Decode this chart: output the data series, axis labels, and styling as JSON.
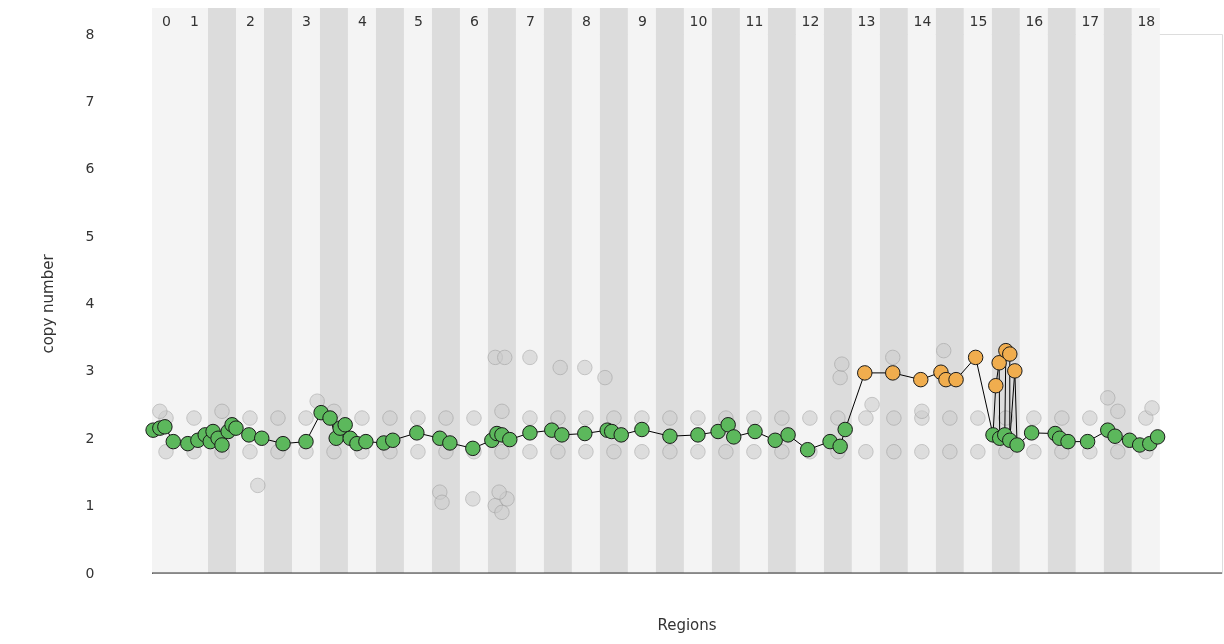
{
  "chart_data": {
    "type": "line",
    "xlabel": "Regions",
    "ylabel": "copy number",
    "xlim": [
      0.25,
      19.36
    ],
    "xticks": [
      {
        "value": 0.5,
        "label": "0"
      },
      1,
      2,
      3,
      4,
      5,
      6,
      7,
      8,
      9,
      10,
      11,
      12,
      13,
      14,
      15,
      16,
      17,
      18
    ],
    "ylim": [
      0,
      8
    ],
    "yticks": [
      0,
      1,
      2,
      3,
      4,
      5,
      6,
      7,
      8
    ],
    "grid": false,
    "bands": [
      {
        "axis": "x",
        "from": 0.25,
        "to": 0.75,
        "color": "#f4f4f4"
      },
      {
        "axis": "x",
        "from": 0.75,
        "to": 1.25,
        "color": "#f4f4f4"
      },
      {
        "axis": "x",
        "from": 1.25,
        "to": 1.75,
        "color": "#dcdcdc"
      },
      {
        "axis": "x",
        "from": 1.75,
        "to": 2.25,
        "color": "#f4f4f4"
      },
      {
        "axis": "x",
        "from": 2.25,
        "to": 2.75,
        "color": "#dcdcdc"
      },
      {
        "axis": "x",
        "from": 2.75,
        "to": 3.25,
        "color": "#f4f4f4"
      },
      {
        "axis": "x",
        "from": 3.25,
        "to": 3.75,
        "color": "#dcdcdc"
      },
      {
        "axis": "x",
        "from": 3.75,
        "to": 4.25,
        "color": "#f4f4f4"
      },
      {
        "axis": "x",
        "from": 4.25,
        "to": 4.75,
        "color": "#dcdcdc"
      },
      {
        "axis": "x",
        "from": 4.75,
        "to": 5.25,
        "color": "#f4f4f4"
      },
      {
        "axis": "x",
        "from": 5.25,
        "to": 5.75,
        "color": "#dcdcdc"
      },
      {
        "axis": "x",
        "from": 5.75,
        "to": 6.25,
        "color": "#f4f4f4"
      },
      {
        "axis": "x",
        "from": 6.25,
        "to": 6.75,
        "color": "#dcdcdc"
      },
      {
        "axis": "x",
        "from": 6.75,
        "to": 7.25,
        "color": "#f4f4f4"
      },
      {
        "axis": "x",
        "from": 7.25,
        "to": 7.75,
        "color": "#dcdcdc"
      },
      {
        "axis": "x",
        "from": 7.75,
        "to": 8.25,
        "color": "#f4f4f4"
      },
      {
        "axis": "x",
        "from": 8.25,
        "to": 8.75,
        "color": "#dcdcdc"
      },
      {
        "axis": "x",
        "from": 8.75,
        "to": 9.25,
        "color": "#f4f4f4"
      },
      {
        "axis": "x",
        "from": 9.25,
        "to": 9.75,
        "color": "#dcdcdc"
      },
      {
        "axis": "x",
        "from": 9.75,
        "to": 10.25,
        "color": "#f4f4f4"
      },
      {
        "axis": "x",
        "from": 10.25,
        "to": 10.75,
        "color": "#dcdcdc"
      },
      {
        "axis": "x",
        "from": 10.75,
        "to": 11.25,
        "color": "#f4f4f4"
      },
      {
        "axis": "x",
        "from": 11.25,
        "to": 11.75,
        "color": "#dcdcdc"
      },
      {
        "axis": "x",
        "from": 11.75,
        "to": 12.25,
        "color": "#f4f4f4"
      },
      {
        "axis": "x",
        "from": 12.25,
        "to": 12.75,
        "color": "#dcdcdc"
      },
      {
        "axis": "x",
        "from": 12.75,
        "to": 13.25,
        "color": "#f4f4f4"
      },
      {
        "axis": "x",
        "from": 13.25,
        "to": 13.75,
        "color": "#dcdcdc"
      },
      {
        "axis": "x",
        "from": 13.75,
        "to": 14.25,
        "color": "#f4f4f4"
      },
      {
        "axis": "x",
        "from": 14.25,
        "to": 14.75,
        "color": "#dcdcdc"
      },
      {
        "axis": "x",
        "from": 14.75,
        "to": 15.25,
        "color": "#f4f4f4"
      },
      {
        "axis": "x",
        "from": 15.25,
        "to": 15.75,
        "color": "#dcdcdc"
      },
      {
        "axis": "x",
        "from": 15.75,
        "to": 16.25,
        "color": "#f4f4f4"
      },
      {
        "axis": "x",
        "from": 16.25,
        "to": 16.75,
        "color": "#dcdcdc"
      },
      {
        "axis": "x",
        "from": 16.75,
        "to": 17.25,
        "color": "#f4f4f4"
      },
      {
        "axis": "x",
        "from": 17.25,
        "to": 17.75,
        "color": "#dcdcdc"
      },
      {
        "axis": "x",
        "from": 17.75,
        "to": 18.25,
        "color": "#f4f4f4"
      }
    ],
    "series": [
      {
        "type": "scatter",
        "marker": "circle",
        "color": "#cccccc",
        "x": [
          0.5,
          0.5,
          1,
          1,
          1.5,
          1.5,
          2,
          2,
          2.5,
          2.5,
          3,
          3,
          3.5,
          3.5,
          4,
          4,
          4.5,
          4.5,
          5,
          5,
          5.5,
          5.5,
          6,
          6,
          6.5,
          6.5,
          7,
          7,
          7.5,
          7.5,
          8,
          8,
          8.5,
          8.5,
          9,
          9,
          9.5,
          9.5,
          10,
          10,
          10.5,
          10.5,
          11,
          11,
          11.5,
          11.5,
          12,
          12,
          12.5,
          12.5,
          13,
          13,
          13.5,
          13.5,
          14,
          14,
          14.5,
          14.5,
          15,
          15,
          15.5,
          15.5,
          16,
          16,
          16.5,
          16.5,
          17,
          17,
          17.5,
          17.5,
          18,
          18,
          2.14,
          5.39,
          5.43,
          5.98,
          6.38,
          6.5,
          6.59,
          6.45,
          6.38,
          6.55,
          7.0,
          7.54,
          7.98,
          8.34,
          3.2,
          12.54,
          12.57,
          13.48,
          14.39,
          13.11,
          14.0,
          17.32,
          0.39,
          18.11
        ],
        "values": [
          1.8,
          2.3,
          1.8,
          2.3,
          1.8,
          2.4,
          1.8,
          2.3,
          1.8,
          2.3,
          1.8,
          2.3,
          1.8,
          2.4,
          1.8,
          2.3,
          1.8,
          2.3,
          1.8,
          2.3,
          1.8,
          2.3,
          1.8,
          2.3,
          1.8,
          2.4,
          1.8,
          2.3,
          1.8,
          2.3,
          1.8,
          2.3,
          1.8,
          2.3,
          1.8,
          2.3,
          1.8,
          2.3,
          1.8,
          2.3,
          1.8,
          2.3,
          1.8,
          2.3,
          1.8,
          2.3,
          1.8,
          2.3,
          1.8,
          2.3,
          1.8,
          2.3,
          1.8,
          2.3,
          1.8,
          2.3,
          1.8,
          2.3,
          1.8,
          2.3,
          1.8,
          2.3,
          1.8,
          2.3,
          1.8,
          2.3,
          1.8,
          2.3,
          1.8,
          2.4,
          1.8,
          2.3,
          1.3,
          1.2,
          1.05,
          1.1,
          1.0,
          0.9,
          1.1,
          1.2,
          3.2,
          3.2,
          3.2,
          3.05,
          3.05,
          2.9,
          2.55,
          2.9,
          3.1,
          3.2,
          3.3,
          2.5,
          2.4,
          2.6,
          2.4,
          2.45
        ]
      },
      {
        "marker": "circle",
        "color": "#000000",
        "x": [
          0.27,
          0.39,
          0.48,
          0.63,
          0.89,
          1.07,
          1.2,
          1.29,
          1.34,
          1.43,
          1.5,
          1.61,
          1.68,
          1.75,
          1.98,
          2.21,
          2.59,
          3.0,
          3.27,
          3.43,
          3.54,
          3.61,
          3.7,
          3.79,
          3.91,
          4.07,
          4.39,
          4.55,
          4.98,
          5.39,
          5.57,
          5.98,
          6.32,
          6.41,
          6.5,
          6.64,
          7.0,
          7.39,
          7.57,
          7.98,
          8.38,
          8.46,
          8.63,
          9.0,
          9.5,
          10.0,
          10.36,
          10.54,
          10.64,
          11.02,
          11.38,
          11.61,
          11.96,
          12.36,
          12.54,
          12.63,
          12.98,
          13.48,
          13.98,
          14.34,
          14.43,
          14.61,
          14.96,
          15.27,
          15.32,
          15.38,
          15.39,
          15.48,
          15.5,
          15.57,
          15.57,
          15.66,
          15.7,
          15.96,
          16.38,
          16.46,
          16.61,
          16.96,
          17.32,
          17.45,
          17.71,
          17.89,
          18.07,
          18.21
        ],
        "values": [
          2.12,
          2.15,
          2.17,
          1.95,
          1.92,
          1.97,
          2.05,
          1.95,
          2.1,
          2.0,
          1.9,
          2.1,
          2.2,
          2.15,
          2.05,
          2.0,
          1.92,
          1.95,
          2.38,
          2.3,
          2.0,
          2.15,
          2.2,
          2.0,
          1.92,
          1.95,
          1.93,
          1.97,
          2.08,
          2.0,
          1.93,
          1.85,
          1.97,
          2.07,
          2.05,
          1.98,
          2.08,
          2.12,
          2.05,
          2.07,
          2.12,
          2.1,
          2.05,
          2.13,
          2.03,
          2.05,
          2.1,
          2.2,
          2.02,
          2.1,
          1.97,
          2.05,
          1.83,
          1.95,
          1.88,
          2.13,
          2.97,
          2.97,
          2.87,
          2.98,
          2.87,
          2.87,
          3.2,
          2.05,
          2.78,
          3.12,
          2.0,
          2.05,
          3.3,
          3.25,
          1.97,
          3.0,
          1.9,
          2.08,
          2.07,
          2.0,
          1.95,
          1.95,
          2.12,
          2.03,
          1.97,
          1.9,
          1.92,
          2.02
        ],
        "colors": [
          "#5cb85c",
          "#5cb85c",
          "#5cb85c",
          "#5cb85c",
          "#5cb85c",
          "#5cb85c",
          "#5cb85c",
          "#5cb85c",
          "#5cb85c",
          "#5cb85c",
          "#5cb85c",
          "#5cb85c",
          "#5cb85c",
          "#5cb85c",
          "#5cb85c",
          "#5cb85c",
          "#5cb85c",
          "#5cb85c",
          "#5cb85c",
          "#5cb85c",
          "#5cb85c",
          "#5cb85c",
          "#5cb85c",
          "#5cb85c",
          "#5cb85c",
          "#5cb85c",
          "#5cb85c",
          "#5cb85c",
          "#5cb85c",
          "#5cb85c",
          "#5cb85c",
          "#5cb85c",
          "#5cb85c",
          "#5cb85c",
          "#5cb85c",
          "#5cb85c",
          "#5cb85c",
          "#5cb85c",
          "#5cb85c",
          "#5cb85c",
          "#5cb85c",
          "#5cb85c",
          "#5cb85c",
          "#5cb85c",
          "#5cb85c",
          "#5cb85c",
          "#5cb85c",
          "#5cb85c",
          "#5cb85c",
          "#5cb85c",
          "#5cb85c",
          "#5cb85c",
          "#5cb85c",
          "#5cb85c",
          "#5cb85c",
          "#5cb85c",
          "#f0ad4e",
          "#f0ad4e",
          "#f0ad4e",
          "#f0ad4e",
          "#f0ad4e",
          "#f0ad4e",
          "#f0ad4e",
          "#5cb85c",
          "#f0ad4e",
          "#f0ad4e",
          "#5cb85c",
          "#5cb85c",
          "#f0ad4e",
          "#f0ad4e",
          "#5cb85c",
          "#f0ad4e",
          "#5cb85c",
          "#5cb85c",
          "#5cb85c",
          "#5cb85c",
          "#5cb85c",
          "#5cb85c",
          "#5cb85c",
          "#5cb85c",
          "#5cb85c",
          "#5cb85c",
          "#5cb85c",
          "#5cb85c"
        ]
      }
    ]
  }
}
